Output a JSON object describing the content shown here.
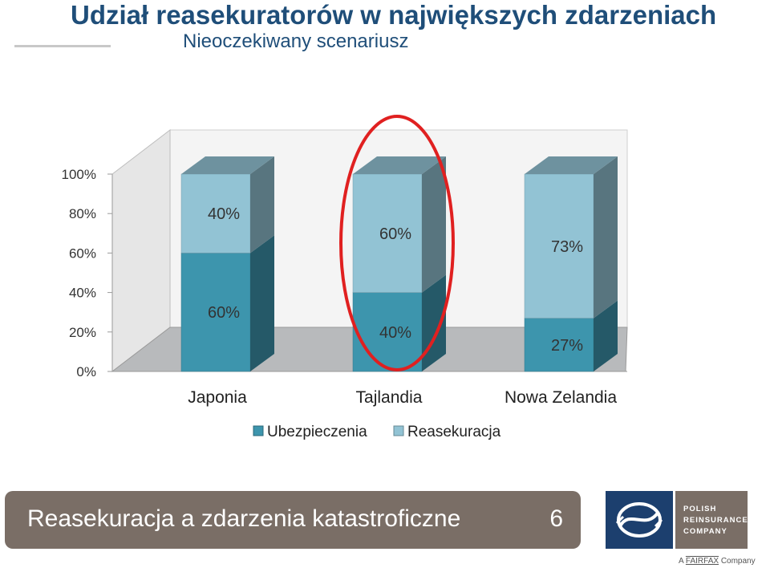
{
  "slide": {
    "title": "Udział reasekuratorów w największych zdarzeniach",
    "subtitle": "Nieoczekiwany scenariusz"
  },
  "chart_data": {
    "type": "bar",
    "stacked": true,
    "style": "3d-stacked-100",
    "categories": [
      "Japonia",
      "Tajlandia",
      "Nowa Zelandia"
    ],
    "series": [
      {
        "name": "Ubezpieczenia",
        "values": [
          60,
          40,
          27
        ],
        "labels": [
          "60%",
          "40%",
          "27%"
        ],
        "color": "#3d95ad"
      },
      {
        "name": "Reasekuracja",
        "values": [
          40,
          60,
          73
        ],
        "labels": [
          "40%",
          "60%",
          "73%"
        ],
        "color": "#92c3d4"
      }
    ],
    "y_ticks": [
      "0%",
      "20%",
      "40%",
      "60%",
      "80%",
      "100%"
    ],
    "ylim": [
      0,
      100
    ],
    "legend_position": "bottom",
    "highlight": {
      "category": "Tajlandia",
      "shape": "ellipse",
      "color": "#e02020"
    }
  },
  "footer": {
    "text": "Reasekuracja a zdarzenia katastroficzne",
    "page": "6"
  },
  "branding": {
    "lines": [
      "Polish",
      "Reinsurance",
      "Company"
    ],
    "parent_prefix": "A",
    "parent_name": "FAIRFAX",
    "parent_suffix": "Company",
    "logo_icon": "prc-logo-icon"
  }
}
